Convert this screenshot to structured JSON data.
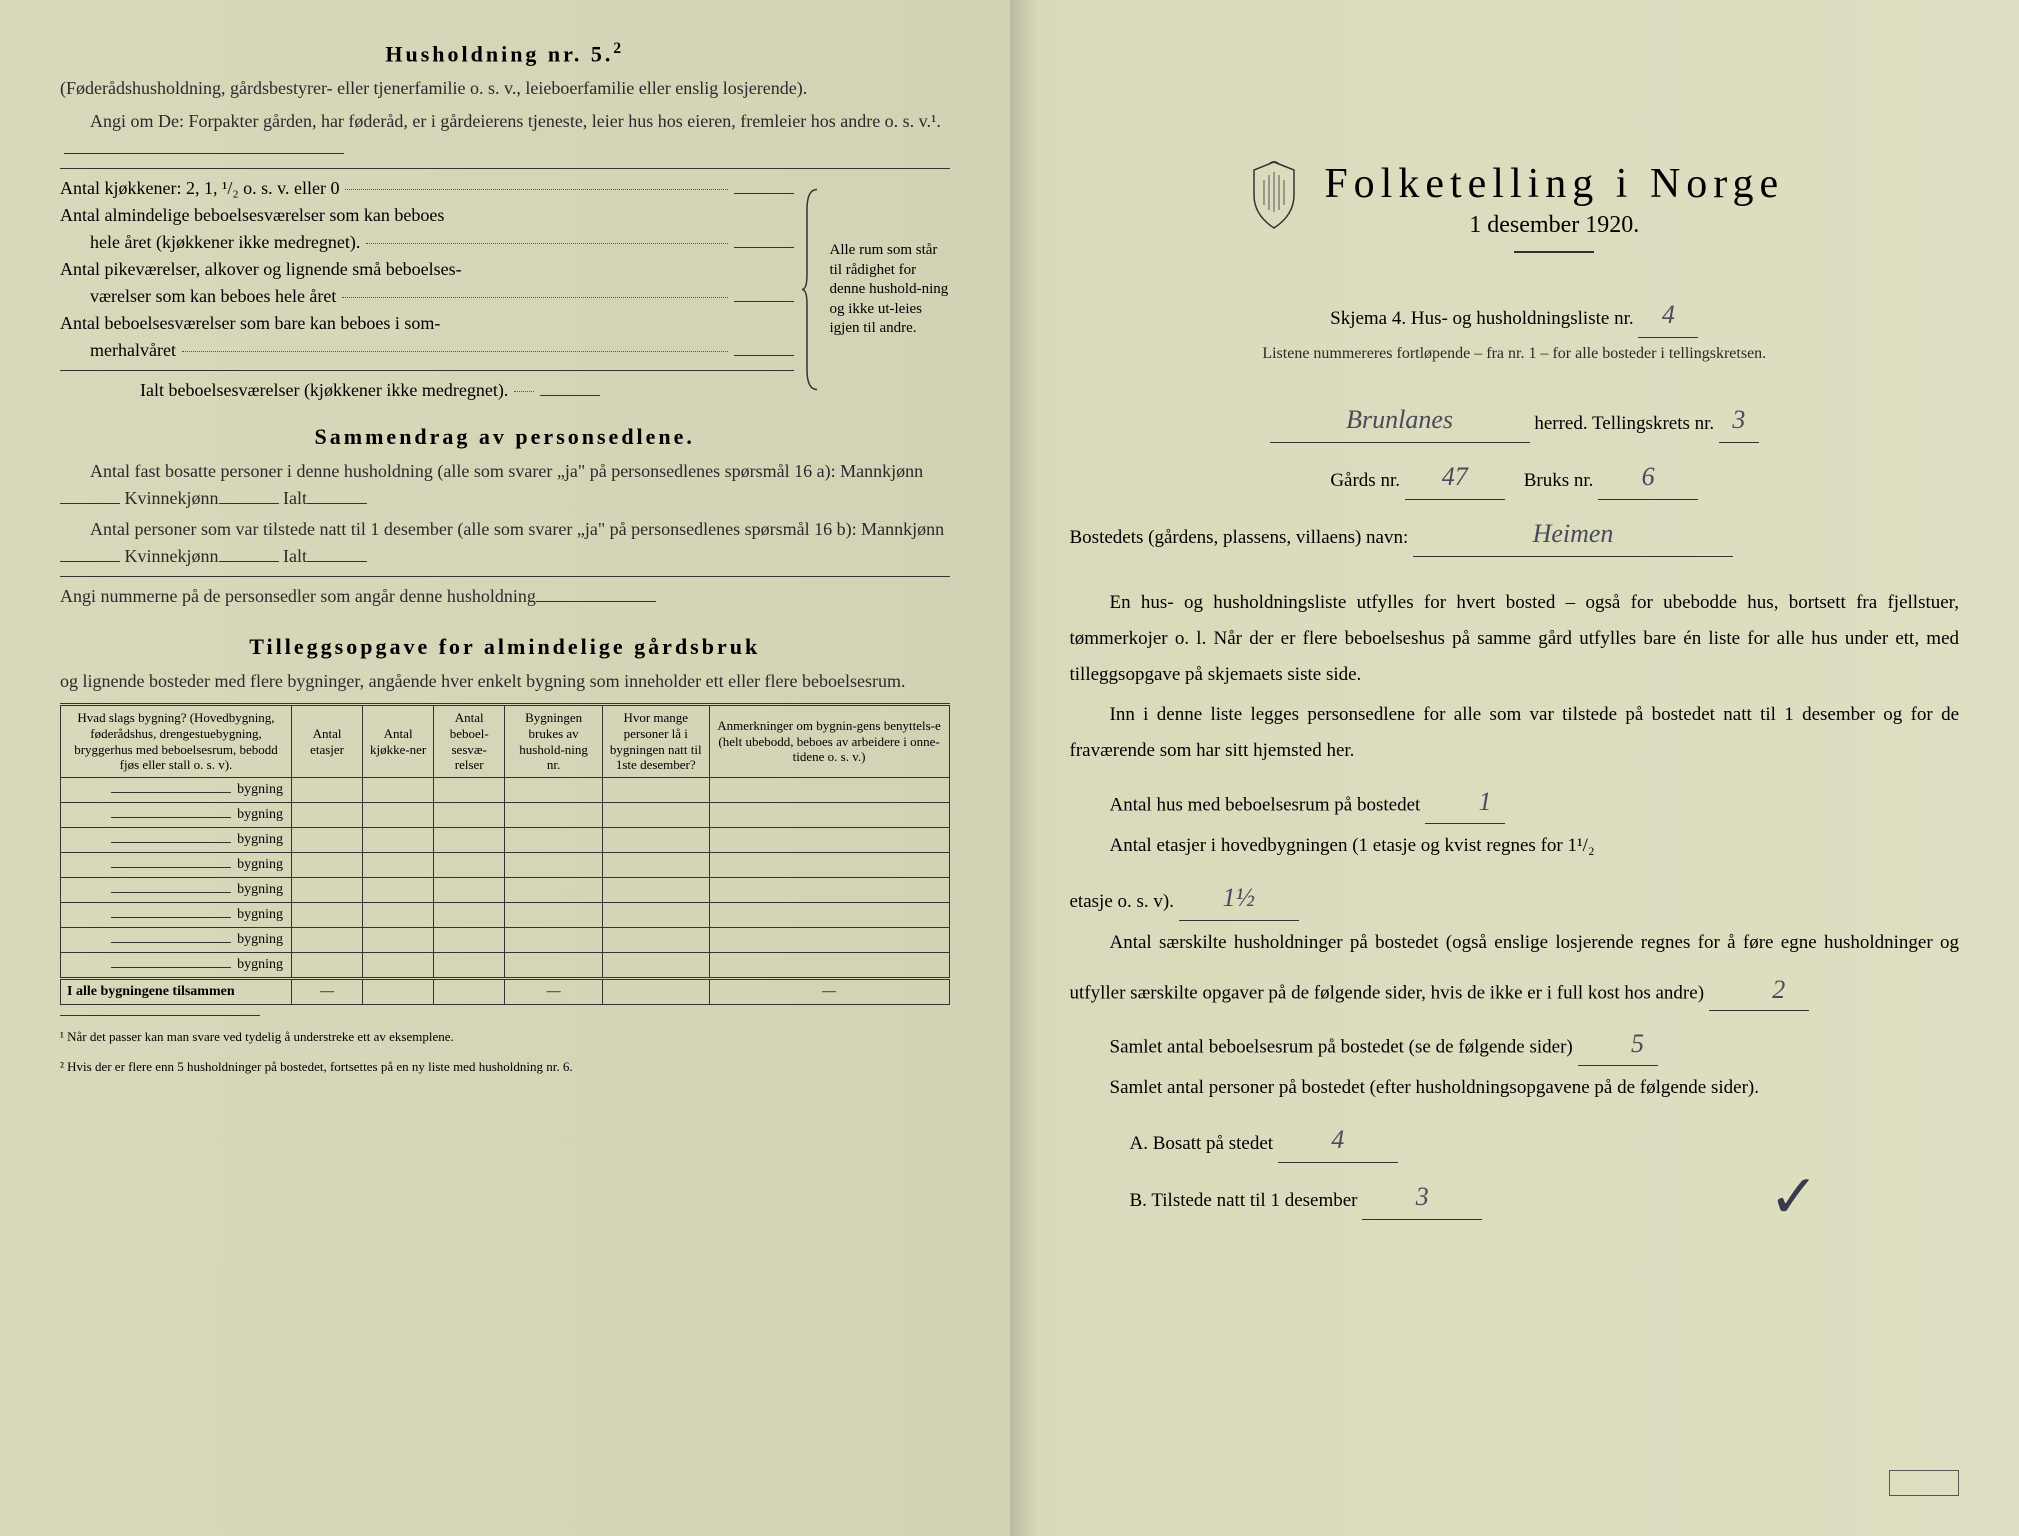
{
  "left": {
    "heading5": "Husholdning nr. 5.",
    "heading5_sup": "2",
    "sub5": "(Føderådshusholdning, gårdsbestyrer- eller tjenerfamilie o. s. v., leieboerfamilie eller enslig losjerende).",
    "angi": "Angi om De: Forpakter gården, har føderåd, er i gårdeierens tjeneste, leier hus hos eieren, fremleier hos andre o. s. v.¹.",
    "kitchens": "Antal kjøkkener: 2, 1, ¹/₂ o. s. v. eller 0",
    "rooms1a": "Antal almindelige beboelsesværelser som kan beboes",
    "rooms1b": "hele året (kjøkkener ikke medregnet).",
    "rooms2a": "Antal pikeværelser, alkover og lignende små beboelses-",
    "rooms2b": "værelser som kan beboes hele året",
    "rooms3a": "Antal beboelsesværelser som bare kan beboes i som-",
    "rooms3b": "merhalvåret",
    "rooms_total": "Ialt beboelsesværelser  (kjøkkener ikke medregnet).",
    "brace_text": "Alle rum som står til rådighet for denne hushold-ning og ikke ut-leies igjen til andre.",
    "summary_title": "Sammendrag av personsedlene.",
    "summary_line1": "Antal fast bosatte personer i denne husholdning (alle som svarer „ja\" på personsedlenes spørsmål 16 a): Mannkjønn",
    "kv": "Kvinnekjønn",
    "ialt": "Ialt",
    "summary_line2": "Antal personer som var tilstede natt til 1 desember (alle som svarer „ja\" på personsedlenes spørsmål 16 b): Mannkjønn",
    "summary_line3": "Angi nummerne på de personsedler som angår denne husholdning",
    "addl_title": "Tilleggsopgave for almindelige gårdsbruk",
    "addl_sub": "og lignende bosteder med flere bygninger, angående hver enkelt bygning som inneholder ett eller flere beboelsesrum.",
    "table": {
      "headers": [
        "Hvad slags bygning?\n(Hovedbygning, føderådshus, drengestuebygning, bryggerhus med beboelsesrum, bebodd fjøs eller stall o. s. v).",
        "Antal etasjer",
        "Antal kjøkke-ner",
        "Antal beboel-sesvæ-relser",
        "Bygningen brukes av hushold-ning nr.",
        "Hvor mange personer lå i bygningen natt til 1ste desember?",
        "Anmerkninger om bygnin-gens benyttels-e (helt ubebodd, beboes av arbeidere i onne-tidene o. s. v.)"
      ],
      "row_label": "bygning",
      "row_count": 8,
      "total_label": "I alle bygningene tilsammen",
      "dash": "—"
    },
    "fn1": "¹ Når det passer kan man svare ved tydelig å understreke ett av eksemplene.",
    "fn2": "² Hvis der er flere enn 5 husholdninger på bostedet, fortsettes på en ny liste med husholdning nr. 6."
  },
  "right": {
    "title": "Folketelling i Norge",
    "subtitle": "1 desember 1920.",
    "skjema": "Skjema 4.  Hus- og husholdningsliste nr.",
    "skjema_val": "4",
    "listene": "Listene nummereres fortløpende – fra nr. 1 – for alle bosteder i tellingskretsen.",
    "herred_val": "Brunlanes",
    "herred_lbl": "herred.   Tellingskrets nr.",
    "krets_val": "3",
    "gards_lbl": "Gårds nr.",
    "gards_val": "47",
    "bruks_lbl": "Bruks nr.",
    "bruks_val": "6",
    "bosted_lbl": "Bostedets (gårdens, plassens, villaens) navn:",
    "bosted_val": "Heimen",
    "para1": "En hus- og husholdningsliste utfylles for hvert bosted – også for ubebodde hus, bortsett fra fjellstuer, tømmerkojer o. l.  Når der er flere beboelseshus på samme gård utfylles bare én liste for alle hus under ett, med tilleggsopgave på skjemaets siste side.",
    "para2": "Inn i denne liste legges personsedlene for alle som var tilstede på bostedet natt til 1 desember og for de fraværende som har sitt hjemsted her.",
    "q1": "Antal hus med beboelsesrum på bostedet",
    "q1_val": "1",
    "q2a": "Antal etasjer i hovedbygningen (1 etasje og kvist regnes for 1¹/₂",
    "q2b": "etasje o. s. v).",
    "q2_val": "1½",
    "q3": "Antal særskilte husholdninger på bostedet (også enslige losjerende regnes for å føre egne husholdninger og utfyller særskilte opgaver på de følgende sider, hvis de ikke er i full kost hos andre)",
    "q3_val": "2",
    "q4": "Samlet antal beboelsesrum på bostedet (se de følgende sider)",
    "q4_val": "5",
    "q5": "Samlet antal personer på bostedet (efter husholdningsopgavene på de følgende sider).",
    "qA": "A.  Bosatt på stedet",
    "qA_val": "4",
    "qB": "B.  Tilstede natt til 1 desember",
    "qB_val": "3"
  },
  "colors": {
    "paper": "#dadabb",
    "text": "#2a2a2a",
    "handwriting": "#4a4a5a"
  }
}
